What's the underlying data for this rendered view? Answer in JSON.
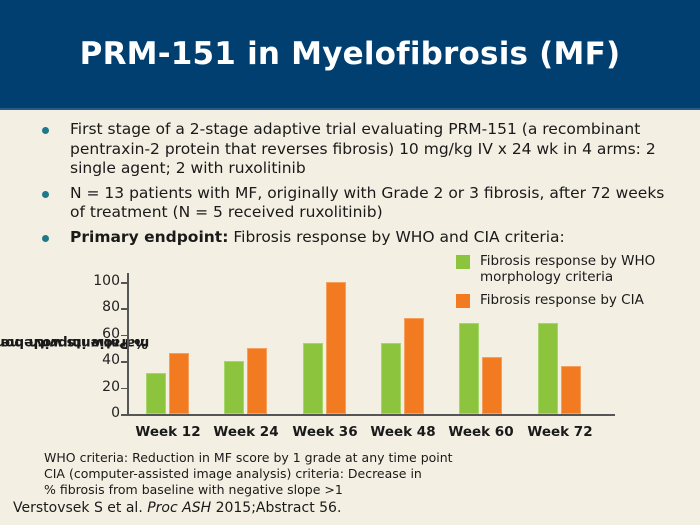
{
  "header": {
    "title": "PRM-151 in Myelofibrosis (MF)"
  },
  "bullets": [
    {
      "text": "First stage of a 2-stage adaptive trial evaluating PRM-151 (a recombinant pentraxin-2 protein that reverses fibrosis) 10 mg/kg IV x 24 wk in 4 arms: 2 single agent; 2 with ruxolitinib"
    },
    {
      "text": "N = 13 patients with MF, originally with Grade 2 or 3 fibrosis, after 72 weeks of treatment (N = 5 received ruxolitinib)"
    },
    {
      "bold": "Primary endpoint:",
      "text": " Fibrosis response by WHO and CIA criteria:"
    }
  ],
  "colors": {
    "header_bg": "#003f6f",
    "who": "#8cc43e",
    "cia": "#f27b22",
    "background": "#f3efe3"
  },
  "chart_data": {
    "type": "bar",
    "title": "",
    "xlabel": "",
    "ylabel": "% Patients with bone marrow improvement",
    "ylim": [
      0,
      100
    ],
    "yticks": [
      0,
      20,
      40,
      60,
      80,
      100
    ],
    "grid": false,
    "legend_position": "top-right",
    "categories": [
      "Week 12",
      "Week 24",
      "Week 36",
      "Week 48",
      "Week 60",
      "Week 72"
    ],
    "series": [
      {
        "name": "Fibrosis response by WHO morphology criteria",
        "color": "#8cc43e",
        "values": [
          31,
          40,
          54,
          54,
          69,
          69
        ]
      },
      {
        "name": "Fibrosis response by CIA",
        "color": "#f27b22",
        "values": [
          46,
          50,
          100,
          73,
          43,
          36
        ]
      }
    ]
  },
  "chart_labels": {
    "ylabel_line1": "% Patients with bone",
    "ylabel_line2": "marrow improvement",
    "legend_who_line1": "Fibrosis response by WHO",
    "legend_who_line2": "morphology criteria",
    "legend_cia": "Fibrosis response by CIA"
  },
  "notes": [
    "WHO criteria: Reduction in MF score by 1 grade at any time point",
    "CIA (computer-assisted image analysis) criteria: Decrease in",
    "% fibrosis from baseline with negative slope >1"
  ],
  "citation": {
    "authors": "Verstovsek S et al. ",
    "journal": "Proc ASH",
    "rest": " 2015;Abstract 56."
  }
}
